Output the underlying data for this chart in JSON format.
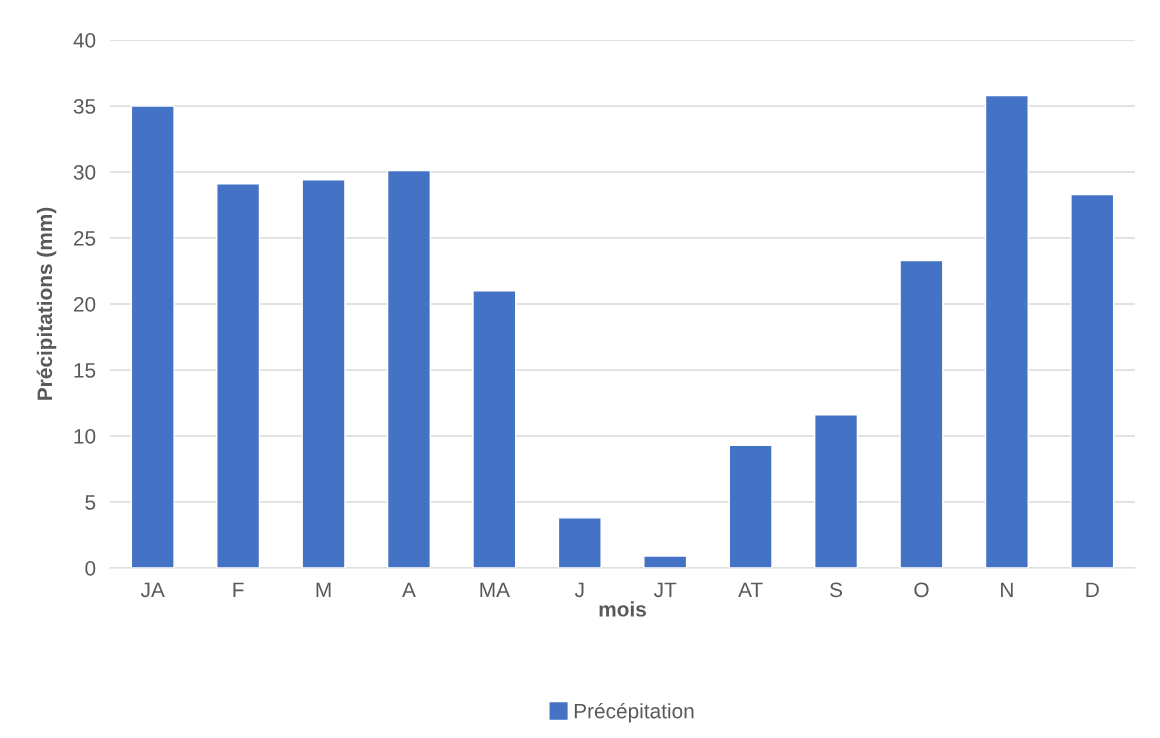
{
  "chart_data": {
    "type": "bar",
    "xlabel": "mois",
    "ylabel": "Précipitations (mm)",
    "categories": [
      "JA",
      "F",
      "M",
      "A",
      "MA",
      "J",
      "JT",
      "AT",
      "S",
      "O",
      "N",
      "D"
    ],
    "series": [
      {
        "name": "Précépitation",
        "color": "#4472c4",
        "values": [
          35.0,
          29.1,
          29.4,
          30.1,
          21.0,
          3.8,
          0.9,
          9.3,
          11.6,
          23.3,
          35.8,
          28.3
        ]
      }
    ],
    "ylim": [
      0,
      40
    ],
    "yticks": [
      0,
      5,
      10,
      15,
      20,
      25,
      30,
      35,
      40
    ],
    "grid": "y",
    "legend": "bottom"
  }
}
